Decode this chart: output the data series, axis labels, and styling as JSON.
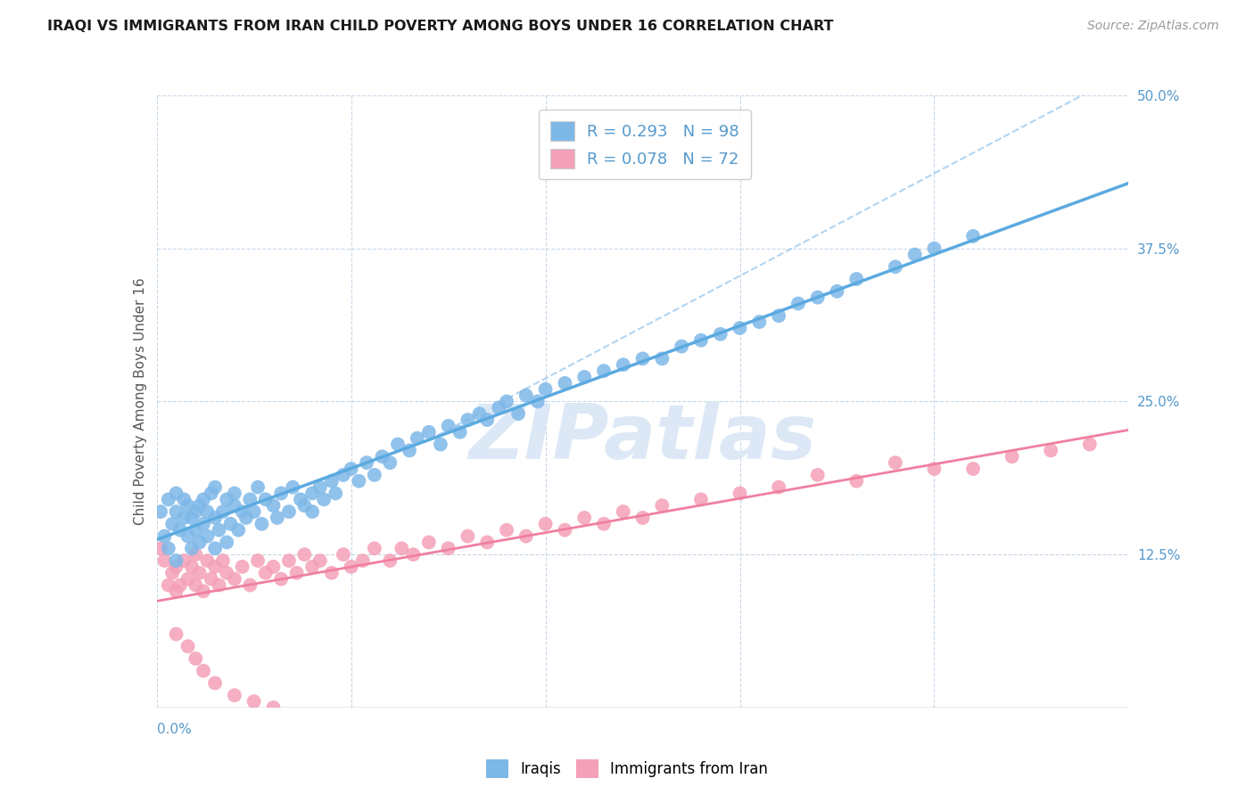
{
  "title": "IRAQI VS IMMIGRANTS FROM IRAN CHILD POVERTY AMONG BOYS UNDER 16 CORRELATION CHART",
  "source": "Source: ZipAtlas.com",
  "ylabel": "Child Poverty Among Boys Under 16",
  "xlim": [
    0.0,
    0.25
  ],
  "ylim": [
    0.0,
    0.5
  ],
  "x_ticks": [
    0.0,
    0.05,
    0.1,
    0.15,
    0.2,
    0.25
  ],
  "y_ticks": [
    0.0,
    0.125,
    0.25,
    0.375,
    0.5
  ],
  "y_tick_labels_right": [
    "",
    "12.5%",
    "25.0%",
    "37.5%",
    "50.0%"
  ],
  "iraqis_color": "#7EB8E8",
  "iran_color": "#F4A0B8",
  "iraqis_line_color": "#5BAAE0",
  "iran_line_color": "#F080A0",
  "iraqis_R": 0.293,
  "iraqis_N": 98,
  "iran_R": 0.078,
  "iran_N": 72,
  "iraqis_scatter_x": [
    0.001,
    0.002,
    0.003,
    0.003,
    0.004,
    0.005,
    0.005,
    0.005,
    0.006,
    0.007,
    0.007,
    0.008,
    0.008,
    0.009,
    0.009,
    0.01,
    0.01,
    0.011,
    0.011,
    0.012,
    0.012,
    0.013,
    0.013,
    0.014,
    0.015,
    0.015,
    0.015,
    0.016,
    0.017,
    0.018,
    0.018,
    0.019,
    0.02,
    0.02,
    0.021,
    0.022,
    0.023,
    0.024,
    0.025,
    0.026,
    0.027,
    0.028,
    0.03,
    0.031,
    0.032,
    0.034,
    0.035,
    0.037,
    0.038,
    0.04,
    0.04,
    0.042,
    0.043,
    0.045,
    0.046,
    0.048,
    0.05,
    0.052,
    0.054,
    0.056,
    0.058,
    0.06,
    0.062,
    0.065,
    0.067,
    0.07,
    0.073,
    0.075,
    0.078,
    0.08,
    0.083,
    0.085,
    0.088,
    0.09,
    0.093,
    0.095,
    0.098,
    0.1,
    0.105,
    0.11,
    0.115,
    0.12,
    0.125,
    0.13,
    0.135,
    0.14,
    0.145,
    0.15,
    0.155,
    0.16,
    0.165,
    0.17,
    0.175,
    0.18,
    0.19,
    0.195,
    0.2,
    0.21
  ],
  "iraqis_scatter_y": [
    0.16,
    0.14,
    0.13,
    0.17,
    0.15,
    0.12,
    0.16,
    0.175,
    0.145,
    0.155,
    0.17,
    0.14,
    0.165,
    0.13,
    0.155,
    0.145,
    0.16,
    0.135,
    0.165,
    0.15,
    0.17,
    0.14,
    0.16,
    0.175,
    0.13,
    0.155,
    0.18,
    0.145,
    0.16,
    0.135,
    0.17,
    0.15,
    0.165,
    0.175,
    0.145,
    0.16,
    0.155,
    0.17,
    0.16,
    0.18,
    0.15,
    0.17,
    0.165,
    0.155,
    0.175,
    0.16,
    0.18,
    0.17,
    0.165,
    0.175,
    0.16,
    0.18,
    0.17,
    0.185,
    0.175,
    0.19,
    0.195,
    0.185,
    0.2,
    0.19,
    0.205,
    0.2,
    0.215,
    0.21,
    0.22,
    0.225,
    0.215,
    0.23,
    0.225,
    0.235,
    0.24,
    0.235,
    0.245,
    0.25,
    0.24,
    0.255,
    0.25,
    0.26,
    0.265,
    0.27,
    0.275,
    0.28,
    0.285,
    0.285,
    0.295,
    0.3,
    0.305,
    0.31,
    0.315,
    0.32,
    0.33,
    0.335,
    0.34,
    0.35,
    0.36,
    0.37,
    0.375,
    0.385
  ],
  "iran_scatter_x": [
    0.001,
    0.002,
    0.003,
    0.004,
    0.005,
    0.005,
    0.006,
    0.007,
    0.008,
    0.009,
    0.01,
    0.01,
    0.011,
    0.012,
    0.013,
    0.014,
    0.015,
    0.016,
    0.017,
    0.018,
    0.02,
    0.022,
    0.024,
    0.026,
    0.028,
    0.03,
    0.032,
    0.034,
    0.036,
    0.038,
    0.04,
    0.042,
    0.045,
    0.048,
    0.05,
    0.053,
    0.056,
    0.06,
    0.063,
    0.066,
    0.07,
    0.075,
    0.08,
    0.085,
    0.09,
    0.095,
    0.1,
    0.105,
    0.11,
    0.115,
    0.12,
    0.125,
    0.13,
    0.14,
    0.15,
    0.16,
    0.17,
    0.18,
    0.19,
    0.2,
    0.21,
    0.22,
    0.23,
    0.24,
    0.005,
    0.008,
    0.01,
    0.012,
    0.015,
    0.02,
    0.025,
    0.03
  ],
  "iran_scatter_y": [
    0.13,
    0.12,
    0.1,
    0.11,
    0.095,
    0.115,
    0.1,
    0.12,
    0.105,
    0.115,
    0.1,
    0.125,
    0.11,
    0.095,
    0.12,
    0.105,
    0.115,
    0.1,
    0.12,
    0.11,
    0.105,
    0.115,
    0.1,
    0.12,
    0.11,
    0.115,
    0.105,
    0.12,
    0.11,
    0.125,
    0.115,
    0.12,
    0.11,
    0.125,
    0.115,
    0.12,
    0.13,
    0.12,
    0.13,
    0.125,
    0.135,
    0.13,
    0.14,
    0.135,
    0.145,
    0.14,
    0.15,
    0.145,
    0.155,
    0.15,
    0.16,
    0.155,
    0.165,
    0.17,
    0.175,
    0.18,
    0.19,
    0.185,
    0.2,
    0.195,
    0.195,
    0.205,
    0.21,
    0.215,
    0.06,
    0.05,
    0.04,
    0.03,
    0.02,
    0.01,
    0.005,
    0.0
  ],
  "background_color": "#ffffff",
  "grid_color": "#c8d8e8",
  "watermark_color": "#dce8f5"
}
